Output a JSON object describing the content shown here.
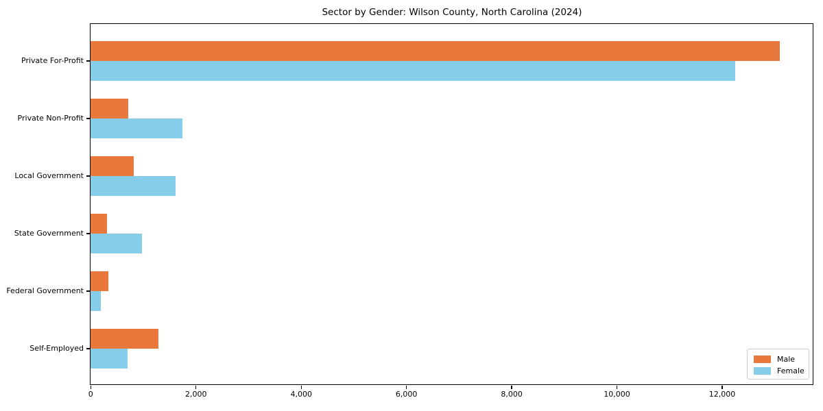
{
  "title": "Sector by Gender: Wilson County, North Carolina (2024)",
  "chart_data": {
    "type": "bar",
    "orientation": "horizontal",
    "title": "Sector by Gender: Wilson County, North Carolina (2024)",
    "categories": [
      "Private For-Profit",
      "Private Non-Profit",
      "Local Government",
      "State Government",
      "Federal Government",
      "Self-Employed"
    ],
    "series": [
      {
        "name": "Male",
        "color": "#E8783B",
        "values": [
          13100,
          715,
          820,
          310,
          335,
          1295
        ]
      },
      {
        "name": "Female",
        "color": "#85CDE8",
        "values": [
          12250,
          1740,
          1610,
          975,
          200,
          710
        ]
      }
    ],
    "xlabel": "",
    "ylabel": "",
    "xlim": [
      0,
      13724
    ],
    "xticks": [
      0,
      2000,
      4000,
      6000,
      8000,
      10000,
      12000
    ],
    "xtick_labels": [
      "0",
      "2,000",
      "4,000",
      "6,000",
      "8,000",
      "10,000",
      "12,000"
    ],
    "grid": false,
    "legend": {
      "position": "lower right"
    },
    "colors": {
      "spine": "#000000",
      "background": "#ffffff",
      "legend_border": "#cbcbcb"
    }
  }
}
